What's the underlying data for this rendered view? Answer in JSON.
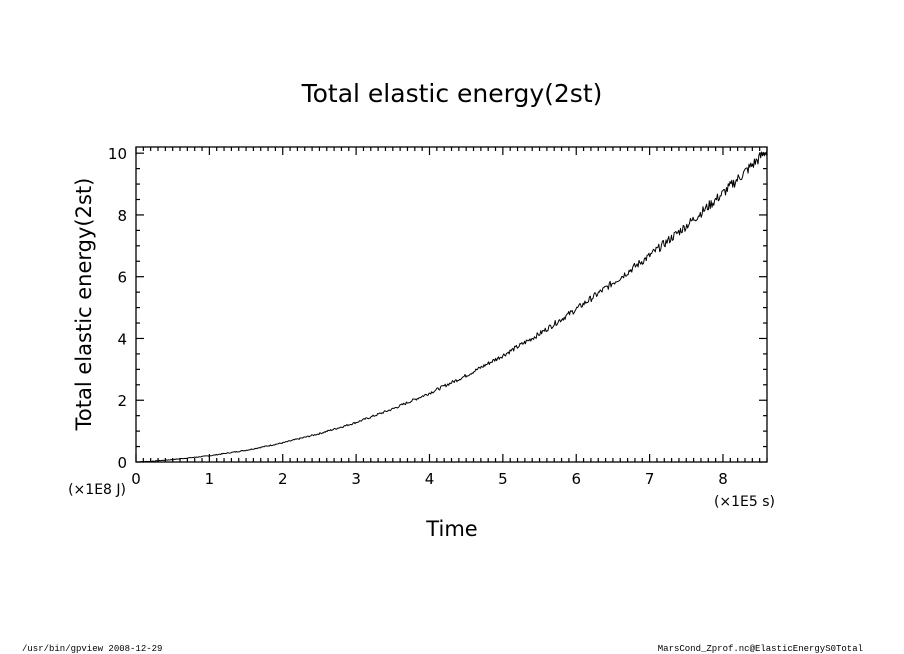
{
  "chart_data": {
    "type": "line",
    "title": "Total elastic energy(2st)",
    "xlabel": "Time",
    "ylabel": "Total elastic energy(2st)",
    "x_unit": "(×1E5 s)",
    "y_unit": "(×1E8 J)",
    "xlim": [
      0,
      8.6
    ],
    "ylim": [
      0,
      10.2
    ],
    "x_ticks": [
      "0",
      "1",
      "2",
      "3",
      "4",
      "5",
      "6",
      "7",
      "8"
    ],
    "y_ticks": [
      "0",
      "2",
      "4",
      "6",
      "8",
      "10"
    ],
    "grid": false,
    "series": [
      {
        "x": [
          0,
          0.25,
          0.5,
          0.75,
          1.0,
          1.5,
          2.0,
          2.5,
          3.0,
          3.5,
          4.0,
          4.5,
          5.0,
          5.5,
          6.0,
          6.5,
          7.0,
          7.5,
          8.0,
          8.5,
          8.6
        ],
        "y": [
          0,
          0.03,
          0.08,
          0.14,
          0.2,
          0.38,
          0.62,
          0.92,
          1.28,
          1.72,
          2.23,
          2.8,
          3.45,
          4.15,
          4.95,
          5.8,
          6.68,
          7.65,
          8.7,
          9.85,
          10.1
        ]
      }
    ]
  },
  "footer": {
    "left": "/usr/bin/gpview   2008-12-29",
    "right": "MarsCond_Zprof.nc@ElasticEnergyS0Total"
  }
}
